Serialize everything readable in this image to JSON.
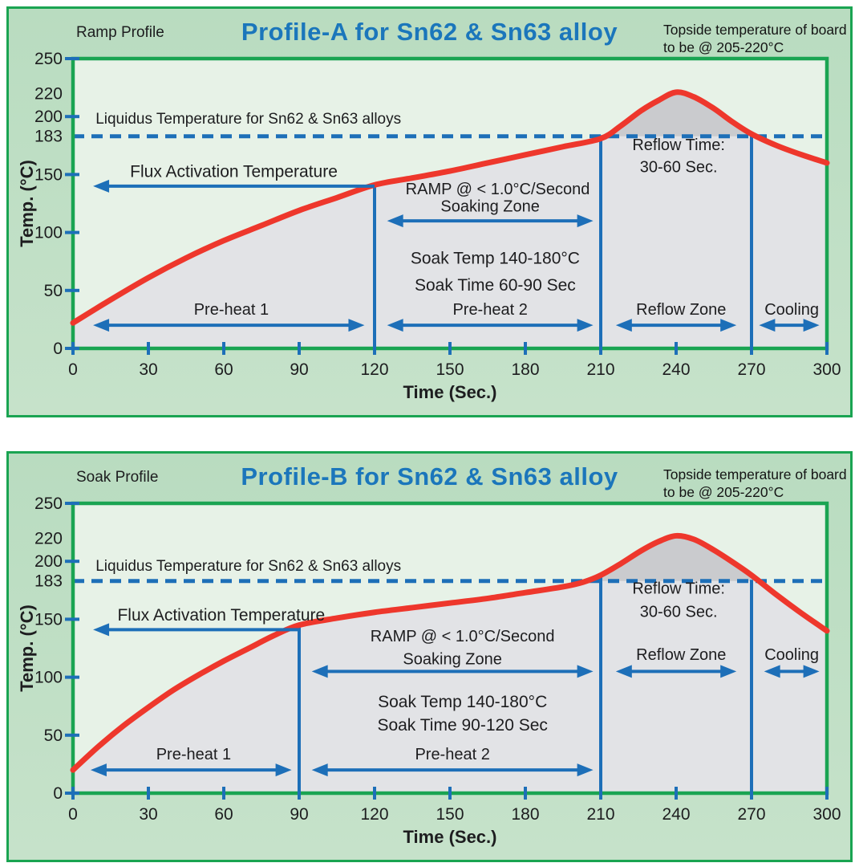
{
  "palette": {
    "page_bg": "#ffffff",
    "panel_green": "#bfdfc5",
    "plot_bg": "#e7f2e7",
    "under_curve_gray": "#e2e3e6",
    "above_liquidus_gray": "#cacbce",
    "line_green": "#1aa452",
    "blue": "#1d6fb8",
    "title_blue": "#1b76bb",
    "curve_red": "#ee372c",
    "text": "#1d1d1f"
  },
  "chart_data": [
    {
      "type": "line",
      "header": {
        "profile_type": "Ramp Profile",
        "title": "Profile-A for Sn62 & Sn63 alloy",
        "note": "Topside temperature of board\nto be @ 205-220°C"
      },
      "xlabel": "Time (Sec.)",
      "ylabel": "Temp. (°C)",
      "xlim": [
        0,
        300
      ],
      "ylim": [
        0,
        250
      ],
      "x_ticks": [
        0,
        30,
        60,
        90,
        120,
        150,
        180,
        210,
        240,
        270,
        300
      ],
      "y_ticks": [
        0,
        50,
        100,
        150,
        200,
        250
      ],
      "y_extra_labels": [
        183,
        220
      ],
      "liquidus_value": 183,
      "series": [
        {
          "name": "board-temperature",
          "points": [
            [
              0,
              22
            ],
            [
              15,
              42
            ],
            [
              30,
              61
            ],
            [
              45,
              78
            ],
            [
              60,
              93
            ],
            [
              75,
              106
            ],
            [
              90,
              119
            ],
            [
              105,
              130
            ],
            [
              120,
              141
            ],
            [
              135,
              147
            ],
            [
              150,
              153
            ],
            [
              165,
              160
            ],
            [
              180,
              167
            ],
            [
              195,
              174
            ],
            [
              210,
              181
            ],
            [
              218,
              192
            ],
            [
              226,
              205
            ],
            [
              233,
              214
            ],
            [
              240,
              221
            ],
            [
              247,
              217
            ],
            [
              255,
              207
            ],
            [
              262,
              196
            ],
            [
              270,
              185
            ],
            [
              280,
              175
            ],
            [
              290,
              167
            ],
            [
              300,
              160
            ]
          ]
        }
      ],
      "zone_boundaries": [
        {
          "x": 120,
          "top_temp": 141
        },
        {
          "x": 210,
          "top_temp": 184
        },
        {
          "x": 270,
          "top_temp": 184
        }
      ],
      "arrows": [
        {
          "name": "flux-activation-arrow",
          "x1": 8,
          "x2": 120,
          "t": 140,
          "heads": "left"
        },
        {
          "name": "soaking-zone-arrow",
          "x1": 125,
          "x2": 207,
          "t": 110,
          "heads": "both"
        },
        {
          "name": "pre-heat-1-arrow",
          "x1": 8,
          "x2": 116,
          "t": 20,
          "heads": "both"
        },
        {
          "name": "pre-heat-2-arrow",
          "x1": 125,
          "x2": 207,
          "t": 20,
          "heads": "both"
        },
        {
          "name": "reflow-zone-arrow",
          "x1": 216,
          "x2": 264,
          "t": 20,
          "heads": "both"
        },
        {
          "name": "cooling-arrow",
          "x1": 273,
          "x2": 297,
          "t": 20,
          "heads": "both"
        }
      ],
      "labels": [
        {
          "name": "liquidus-label",
          "x": 9,
          "t": 194,
          "text": "Liquidus Temperature for Sn62 & Sn63 alloys",
          "anchor": "start",
          "size": 19
        },
        {
          "name": "flux-activation-label",
          "x": 64,
          "t": 148,
          "text": "Flux Activation Temperature",
          "anchor": "middle",
          "size": 21
        },
        {
          "name": "ramp-rate-label",
          "x": 169,
          "t": 133,
          "text": "RAMP @ < 1.0°C/Second",
          "anchor": "middle",
          "size": 20
        },
        {
          "name": "soaking-zone-label",
          "x": 166,
          "t": 118,
          "text": "Soaking Zone",
          "anchor": "middle",
          "size": 20
        },
        {
          "name": "soak-temp-label",
          "x": 168,
          "t": 73,
          "text": "Soak Temp 140-180°C",
          "anchor": "middle",
          "size": 21
        },
        {
          "name": "soak-time-label",
          "x": 168,
          "t": 50,
          "text": "Soak Time 60-90 Sec",
          "anchor": "middle",
          "size": 21
        },
        {
          "name": "pre-heat-1-label",
          "x": 63,
          "t": 29,
          "text": "Pre-heat 1",
          "anchor": "middle",
          "size": 20
        },
        {
          "name": "pre-heat-2-label",
          "x": 166,
          "t": 29,
          "text": "Pre-heat 2",
          "anchor": "middle",
          "size": 20
        },
        {
          "name": "reflow-time-label-line1",
          "x": 241,
          "t": 171,
          "text": "Reflow Time:",
          "anchor": "middle",
          "size": 20
        },
        {
          "name": "reflow-time-label-line2",
          "x": 241,
          "t": 152,
          "text": "30-60 Sec.",
          "anchor": "middle",
          "size": 20
        },
        {
          "name": "reflow-zone-label",
          "x": 242,
          "t": 29,
          "text": "Reflow Zone",
          "anchor": "middle",
          "size": 20
        },
        {
          "name": "cooling-label",
          "x": 286,
          "t": 29,
          "text": "Cooling",
          "anchor": "middle",
          "size": 20
        }
      ]
    },
    {
      "type": "line",
      "header": {
        "profile_type": "Soak Profile",
        "title": "Profile-B for Sn62 & Sn63 alloy",
        "note": "Topside temperature of board\nto be @ 205-220°C"
      },
      "xlabel": "Time (Sec.)",
      "ylabel": "Temp. (°C)",
      "xlim": [
        0,
        300
      ],
      "ylim": [
        0,
        250
      ],
      "x_ticks": [
        0,
        30,
        60,
        90,
        120,
        150,
        180,
        210,
        240,
        270,
        300
      ],
      "y_ticks": [
        0,
        50,
        100,
        150,
        200,
        250
      ],
      "y_extra_labels": [
        183,
        220
      ],
      "liquidus_value": 183,
      "series": [
        {
          "name": "board-temperature",
          "points": [
            [
              0,
              20
            ],
            [
              10,
              40
            ],
            [
              20,
              58
            ],
            [
              30,
              74
            ],
            [
              40,
              89
            ],
            [
              50,
              102
            ],
            [
              60,
              114
            ],
            [
              70,
              125
            ],
            [
              80,
              136
            ],
            [
              90,
              145
            ],
            [
              105,
              151
            ],
            [
              120,
              156
            ],
            [
              135,
              160
            ],
            [
              150,
              164
            ],
            [
              165,
              168
            ],
            [
              180,
              173
            ],
            [
              195,
              178
            ],
            [
              203,
              182
            ],
            [
              210,
              188
            ],
            [
              218,
              198
            ],
            [
              226,
              209
            ],
            [
              233,
              217
            ],
            [
              240,
              222
            ],
            [
              247,
              219
            ],
            [
              254,
              211
            ],
            [
              262,
              200
            ],
            [
              270,
              188
            ],
            [
              280,
              171
            ],
            [
              290,
              155
            ],
            [
              300,
              140
            ]
          ]
        }
      ],
      "zone_boundaries": [
        {
          "x": 90,
          "top_temp": 146
        },
        {
          "x": 210,
          "top_temp": 187
        },
        {
          "x": 270,
          "top_temp": 184
        }
      ],
      "arrows": [
        {
          "name": "flux-activation-arrow",
          "x1": 8,
          "x2": 90,
          "t": 141,
          "heads": "left"
        },
        {
          "name": "soaking-zone-arrow",
          "x1": 95,
          "x2": 207,
          "t": 105,
          "heads": "both"
        },
        {
          "name": "pre-heat-1-arrow",
          "x1": 7,
          "x2": 87,
          "t": 20,
          "heads": "both"
        },
        {
          "name": "pre-heat-2-arrow",
          "x1": 95,
          "x2": 207,
          "t": 20,
          "heads": "both"
        },
        {
          "name": "reflow-zone-arrow",
          "x1": 216,
          "x2": 264,
          "t": 105,
          "heads": "both"
        },
        {
          "name": "cooling-arrow",
          "x1": 275,
          "x2": 297,
          "t": 105,
          "heads": "both"
        }
      ],
      "labels": [
        {
          "name": "liquidus-label",
          "x": 9,
          "t": 192,
          "text": "Liquidus Temperature for Sn62 & Sn63 alloys",
          "anchor": "start",
          "size": 19
        },
        {
          "name": "flux-activation-label",
          "x": 59,
          "t": 149,
          "text": "Flux Activation Temperature",
          "anchor": "middle",
          "size": 21
        },
        {
          "name": "ramp-rate-label",
          "x": 155,
          "t": 131,
          "text": "RAMP @ < 1.0°C/Second",
          "anchor": "middle",
          "size": 20
        },
        {
          "name": "soaking-zone-label",
          "x": 151,
          "t": 111,
          "text": "Soaking Zone",
          "anchor": "middle",
          "size": 20
        },
        {
          "name": "soak-temp-label",
          "x": 155,
          "t": 74,
          "text": "Soak Temp 140-180°C",
          "anchor": "middle",
          "size": 21
        },
        {
          "name": "soak-time-label",
          "x": 155,
          "t": 54,
          "text": "Soak Time 90-120 Sec",
          "anchor": "middle",
          "size": 21
        },
        {
          "name": "pre-heat-1-label",
          "x": 48,
          "t": 29,
          "text": "Pre-heat 1",
          "anchor": "middle",
          "size": 20
        },
        {
          "name": "pre-heat-2-label",
          "x": 151,
          "t": 29,
          "text": "Pre-heat 2",
          "anchor": "middle",
          "size": 20
        },
        {
          "name": "reflow-time-label-line1",
          "x": 241,
          "t": 172,
          "text": "Reflow Time:",
          "anchor": "middle",
          "size": 20
        },
        {
          "name": "reflow-time-label-line2",
          "x": 241,
          "t": 152,
          "text": "30-60 Sec.",
          "anchor": "middle",
          "size": 20
        },
        {
          "name": "reflow-zone-label",
          "x": 242,
          "t": 115,
          "text": "Reflow Zone",
          "anchor": "middle",
          "size": 20
        },
        {
          "name": "cooling-label",
          "x": 286,
          "t": 115,
          "text": "Cooling",
          "anchor": "middle",
          "size": 20
        }
      ]
    }
  ]
}
